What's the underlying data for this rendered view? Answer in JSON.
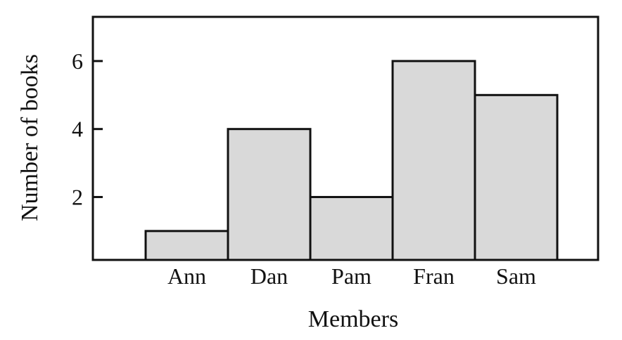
{
  "chart_data": {
    "type": "bar",
    "categories": [
      "Ann",
      "Dan",
      "Pam",
      "Fran",
      "Sam"
    ],
    "values": [
      1,
      4,
      2,
      6,
      5
    ],
    "xlabel": "Members",
    "ylabel": "Number of books",
    "ylim": [
      0.15,
      7.3
    ],
    "yticks": [
      2,
      4,
      6
    ],
    "grid": false,
    "colors": {
      "bar_fill": "#d9d9d9",
      "bar_stroke": "#111111",
      "axis": "#111111"
    }
  }
}
